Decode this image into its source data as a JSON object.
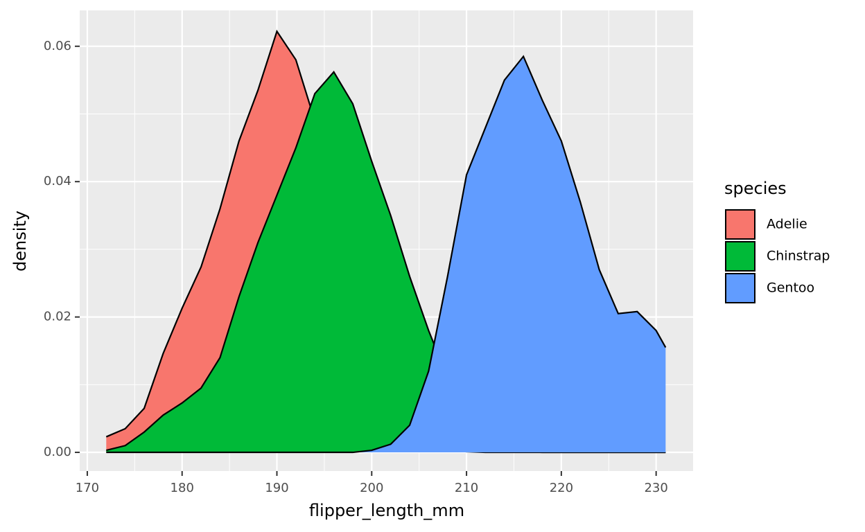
{
  "chart_data": {
    "type": "density",
    "x_label": "flipper_length_mm",
    "y_label": "density",
    "legend_title": "species",
    "x": [
      172,
      174,
      176,
      178,
      180,
      182,
      184,
      186,
      188,
      190,
      192,
      194,
      196,
      198,
      200,
      202,
      204,
      206,
      208,
      210,
      212,
      214,
      216,
      218,
      220,
      222,
      224,
      226,
      228,
      230,
      231
    ],
    "series": [
      {
        "name": "Adelie",
        "color": "#f8766d",
        "values": [
          0.0023,
          0.0035,
          0.0065,
          0.0146,
          0.0213,
          0.0274,
          0.036,
          0.046,
          0.0535,
          0.0622,
          0.058,
          0.049,
          0.038,
          0.026,
          0.016,
          0.008,
          0.003,
          0.001,
          0.0003,
          0.0001,
          0,
          0,
          0,
          0,
          0,
          0,
          0,
          0,
          0,
          0,
          0
        ]
      },
      {
        "name": "Chinstrap",
        "color": "#00ba38",
        "values": [
          0.0003,
          0.001,
          0.003,
          0.0055,
          0.0073,
          0.0095,
          0.014,
          0.023,
          0.031,
          0.038,
          0.045,
          0.053,
          0.0562,
          0.0515,
          0.043,
          0.035,
          0.026,
          0.018,
          0.011,
          0.005,
          0.0015,
          0.0004,
          0.0001,
          0,
          0,
          0,
          0,
          0,
          0,
          0,
          0
        ]
      },
      {
        "name": "Gentoo",
        "color": "#619cff",
        "values": [
          0,
          0,
          0,
          0,
          0,
          0,
          0,
          0,
          0,
          0,
          0,
          0,
          0,
          0,
          0.0003,
          0.0012,
          0.004,
          0.012,
          0.026,
          0.041,
          0.048,
          0.055,
          0.0585,
          0.052,
          0.046,
          0.037,
          0.027,
          0.0205,
          0.0208,
          0.018,
          0.0155
        ]
      }
    ],
    "xlim": [
      169.2,
      233.9
    ],
    "ylim": [
      -0.00276,
      0.0653
    ],
    "xticks": [
      170,
      180,
      190,
      200,
      210,
      220,
      230
    ],
    "yticks": [
      {
        "value": 0,
        "label": "0.00"
      },
      {
        "value": 0.02,
        "label": "0.02"
      },
      {
        "value": 0.04,
        "label": "0.04"
      },
      {
        "value": 0.06,
        "label": "0.06"
      }
    ],
    "grid": true,
    "legend": "right",
    "panel_color": "#ebebeb"
  }
}
